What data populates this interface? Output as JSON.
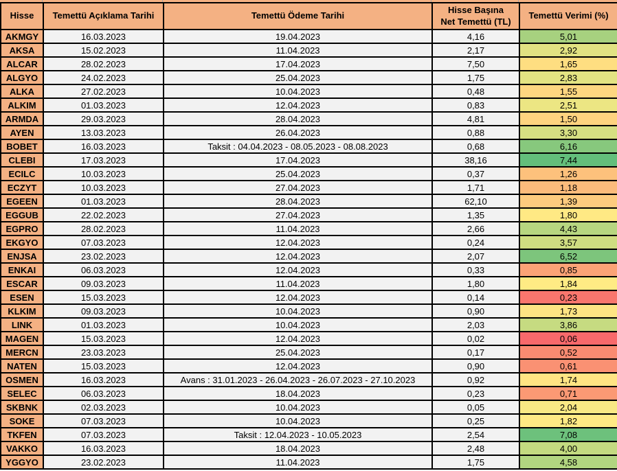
{
  "chart_data": {
    "type": "table",
    "columns": [
      "Hisse",
      "Temettü Açıklama Tarihi",
      "Temettü Ödeme Tarihi",
      "Hisse Başına\nNet Temettü (TL)",
      "Temettü Verimi (%)"
    ],
    "rows": [
      {
        "hisse": "AKMGY",
        "aciklama_tarihi": "16.03.2023",
        "odeme_tarihi": "19.04.2023",
        "net_temettu_tl": "4,16",
        "temettu_verimi_pct": "5,01",
        "verim_cell_color": "#A7D17F"
      },
      {
        "hisse": "AKSA",
        "aciklama_tarihi": "15.02.2023",
        "odeme_tarihi": "11.04.2023",
        "net_temettu_tl": "2,17",
        "temettu_verimi_pct": "2,92",
        "verim_cell_color": "#E1E282"
      },
      {
        "hisse": "ALCAR",
        "aciklama_tarihi": "28.02.2023",
        "odeme_tarihi": "17.04.2023",
        "net_temettu_tl": "7,50",
        "temettu_verimi_pct": "1,65",
        "verim_cell_color": "#FEDE81"
      },
      {
        "hisse": "ALGYO",
        "aciklama_tarihi": "24.02.2023",
        "odeme_tarihi": "25.04.2023",
        "net_temettu_tl": "1,75",
        "temettu_verimi_pct": "2,83",
        "verim_cell_color": "#E3E382"
      },
      {
        "hisse": "ALKA",
        "aciklama_tarihi": "27.02.2023",
        "odeme_tarihi": "10.04.2023",
        "net_temettu_tl": "0,48",
        "temettu_verimi_pct": "1,55",
        "verim_cell_color": "#FED680"
      },
      {
        "hisse": "ALKIM",
        "aciklama_tarihi": "01.03.2023",
        "odeme_tarihi": "12.04.2023",
        "net_temettu_tl": "0,83",
        "temettu_verimi_pct": "2,51",
        "verim_cell_color": "#ECE683"
      },
      {
        "hisse": "ARMDA",
        "aciklama_tarihi": "29.03.2023",
        "odeme_tarihi": "28.04.2023",
        "net_temettu_tl": "4,81",
        "temettu_verimi_pct": "1,50",
        "verim_cell_color": "#FED37F"
      },
      {
        "hisse": "AYEN",
        "aciklama_tarihi": "13.03.2023",
        "odeme_tarihi": "26.04.2023",
        "net_temettu_tl": "0,88",
        "temettu_verimi_pct": "3,30",
        "verim_cell_color": "#D6DF82"
      },
      {
        "hisse": "BOBET",
        "aciklama_tarihi": "16.03.2023",
        "odeme_tarihi": "Taksit : 04.04.2023 - 08.05.2023 - 08.08.2023",
        "net_temettu_tl": "0,68",
        "temettu_verimi_pct": "6,16",
        "verim_cell_color": "#87C87D"
      },
      {
        "hisse": "CLEBI",
        "aciklama_tarihi": "17.03.2023",
        "odeme_tarihi": "17.04.2023",
        "net_temettu_tl": "38,16",
        "temettu_verimi_pct": "7,44",
        "verim_cell_color": "#63BE7B"
      },
      {
        "hisse": "ECILC",
        "aciklama_tarihi": "10.03.2023",
        "odeme_tarihi": "25.04.2023",
        "net_temettu_tl": "0,37",
        "temettu_verimi_pct": "1,26",
        "verim_cell_color": "#FDC17C"
      },
      {
        "hisse": "ECZYT",
        "aciklama_tarihi": "10.03.2023",
        "odeme_tarihi": "27.04.2023",
        "net_temettu_tl": "1,71",
        "temettu_verimi_pct": "1,18",
        "verim_cell_color": "#FCBB7B"
      },
      {
        "hisse": "EGEEN",
        "aciklama_tarihi": "01.03.2023",
        "odeme_tarihi": "28.04.2023",
        "net_temettu_tl": "62,10",
        "temettu_verimi_pct": "1,39",
        "verim_cell_color": "#FDCB7E"
      },
      {
        "hisse": "EGGUB",
        "aciklama_tarihi": "22.02.2023",
        "odeme_tarihi": "27.04.2023",
        "net_temettu_tl": "1,35",
        "temettu_verimi_pct": "1,80",
        "verim_cell_color": "#FFE984"
      },
      {
        "hisse": "EGPRO",
        "aciklama_tarihi": "28.02.2023",
        "odeme_tarihi": "11.04.2023",
        "net_temettu_tl": "2,66",
        "temettu_verimi_pct": "4,43",
        "verim_cell_color": "#B7D680"
      },
      {
        "hisse": "EKGYO",
        "aciklama_tarihi": "07.03.2023",
        "odeme_tarihi": "12.04.2023",
        "net_temettu_tl": "0,24",
        "temettu_verimi_pct": "3,57",
        "verim_cell_color": "#CFDD81"
      },
      {
        "hisse": "ENJSA",
        "aciklama_tarihi": "23.02.2023",
        "odeme_tarihi": "12.04.2023",
        "net_temettu_tl": "2,07",
        "temettu_verimi_pct": "6,52",
        "verim_cell_color": "#7DC57C"
      },
      {
        "hisse": "ENKAI",
        "aciklama_tarihi": "06.03.2023",
        "odeme_tarihi": "12.04.2023",
        "net_temettu_tl": "0,33",
        "temettu_verimi_pct": "0,85",
        "verim_cell_color": "#FBA376"
      },
      {
        "hisse": "ESCAR",
        "aciklama_tarihi": "09.03.2023",
        "odeme_tarihi": "11.04.2023",
        "net_temettu_tl": "1,80",
        "temettu_verimi_pct": "1,84",
        "verim_cell_color": "#FFEB84"
      },
      {
        "hisse": "ESEN",
        "aciklama_tarihi": "15.03.2023",
        "odeme_tarihi": "12.04.2023",
        "net_temettu_tl": "0,14",
        "temettu_verimi_pct": "0,23",
        "verim_cell_color": "#F9766D"
      },
      {
        "hisse": "KLKIM",
        "aciklama_tarihi": "09.03.2023",
        "odeme_tarihi": "10.04.2023",
        "net_temettu_tl": "0,90",
        "temettu_verimi_pct": "1,73",
        "verim_cell_color": "#FEE483"
      },
      {
        "hisse": "LINK",
        "aciklama_tarihi": "01.03.2023",
        "odeme_tarihi": "10.04.2023",
        "net_temettu_tl": "2,03",
        "temettu_verimi_pct": "3,86",
        "verim_cell_color": "#C6DB81"
      },
      {
        "hisse": "MAGEN",
        "aciklama_tarihi": "15.03.2023",
        "odeme_tarihi": "12.04.2023",
        "net_temettu_tl": "0,02",
        "temettu_verimi_pct": "0,06",
        "verim_cell_color": "#F8696B"
      },
      {
        "hisse": "MERCN",
        "aciklama_tarihi": "23.03.2023",
        "odeme_tarihi": "25.04.2023",
        "net_temettu_tl": "0,17",
        "temettu_verimi_pct": "0,52",
        "verim_cell_color": "#FA8B71"
      },
      {
        "hisse": "NATEN",
        "aciklama_tarihi": "15.03.2023",
        "odeme_tarihi": "12.04.2023",
        "net_temettu_tl": "0,90",
        "temettu_verimi_pct": "0,61",
        "verim_cell_color": "#FA9173"
      },
      {
        "hisse": "OSMEN",
        "aciklama_tarihi": "16.03.2023",
        "odeme_tarihi": "Avans : 31.01.2023 - 26.04.2023 - 26.07.2023 - 27.10.2023",
        "net_temettu_tl": "0,92",
        "temettu_verimi_pct": "1,74",
        "verim_cell_color": "#FFE483"
      },
      {
        "hisse": "SELEC",
        "aciklama_tarihi": "06.03.2023",
        "odeme_tarihi": "18.04.2023",
        "net_temettu_tl": "0,23",
        "temettu_verimi_pct": "0,71",
        "verim_cell_color": "#FB9974"
      },
      {
        "hisse": "SKBNK",
        "aciklama_tarihi": "02.03.2023",
        "odeme_tarihi": "10.04.2023",
        "net_temettu_tl": "0,05",
        "temettu_verimi_pct": "2,04",
        "verim_cell_color": "#F9E984"
      },
      {
        "hisse": "SOKE",
        "aciklama_tarihi": "07.03.2023",
        "odeme_tarihi": "10.04.2023",
        "net_temettu_tl": "0,25",
        "temettu_verimi_pct": "1,82",
        "verim_cell_color": "#FFEA84"
      },
      {
        "hisse": "TKFEN",
        "aciklama_tarihi": "07.03.2023",
        "odeme_tarihi": "Taksit : 12.04.2023 - 10.05.2023",
        "net_temettu_tl": "2,54",
        "temettu_verimi_pct": "7,08",
        "verim_cell_color": "#6DC17C"
      },
      {
        "hisse": "VAKKO",
        "aciklama_tarihi": "16.03.2023",
        "odeme_tarihi": "18.04.2023",
        "net_temettu_tl": "2,48",
        "temettu_verimi_pct": "4,00",
        "verim_cell_color": "#C3DA80"
      },
      {
        "hisse": "YGGYO",
        "aciklama_tarihi": "23.02.2023",
        "odeme_tarihi": "11.04.2023",
        "net_temettu_tl": "1,75",
        "temettu_verimi_pct": "4,58",
        "verim_cell_color": "#B2D580"
      }
    ],
    "title": "",
    "layout_hints": {
      "grid": "on",
      "yield_color_scale": {
        "min": "#F8696B",
        "mid": "#FFEB84",
        "max": "#63BE7B",
        "min_value": "0,06",
        "max_value": "7,44"
      }
    }
  },
  "colors": {
    "header_bg": "#F4B183",
    "ticker_bg": "#F4B183",
    "cell_bg": "#F2F2F2",
    "border": "#000000"
  }
}
